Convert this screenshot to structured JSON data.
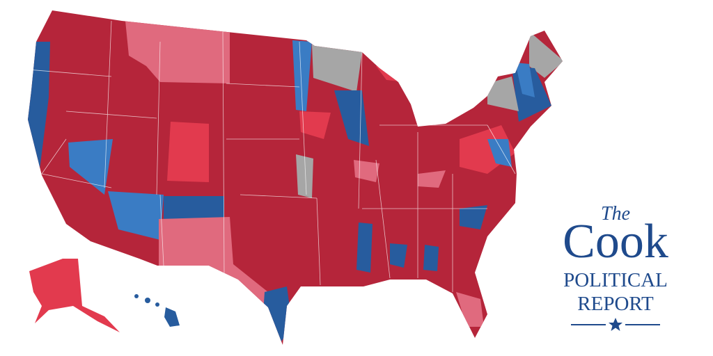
{
  "logo": {
    "article": "The",
    "name": "Cook",
    "line1": "POLITICAL",
    "line2": "REPORT"
  }
}
